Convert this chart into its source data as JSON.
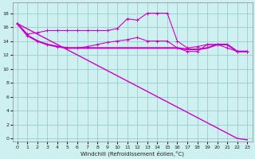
{
  "xlabel": "Windchill (Refroidissement éolien,°C)",
  "bg_color": "#cff0f0",
  "grid_color": "#99cccc",
  "line_color": "#cc00cc",
  "x_ticks": [
    0,
    1,
    2,
    3,
    4,
    5,
    6,
    7,
    8,
    9,
    10,
    11,
    12,
    13,
    14,
    15,
    16,
    17,
    18,
    19,
    20,
    21,
    22,
    23
  ],
  "y_ticks": [
    0,
    2,
    4,
    6,
    8,
    10,
    12,
    14,
    16,
    18
  ],
  "xlim": [
    -0.5,
    23.5
  ],
  "ylim": [
    -0.5,
    19.5
  ],
  "series": {
    "line_diagonal": {
      "x": [
        0,
        1,
        2,
        3,
        4,
        5,
        6,
        7,
        8,
        9,
        10,
        11,
        12,
        13,
        14,
        15,
        16,
        17,
        18,
        19,
        20,
        21,
        22,
        23
      ],
      "y": [
        16.5,
        15.75,
        15.0,
        14.25,
        13.5,
        12.75,
        12.0,
        11.25,
        10.5,
        9.75,
        9.0,
        8.25,
        7.5,
        6.75,
        6.0,
        5.25,
        4.5,
        3.75,
        3.0,
        2.25,
        1.5,
        0.75,
        0.0,
        -0.2
      ],
      "marker": null,
      "lw": 1.0
    },
    "line_flat": {
      "x": [
        0,
        1,
        2,
        3,
        4,
        5,
        6,
        7,
        8,
        9,
        10,
        11,
        12,
        13,
        14,
        15,
        16,
        17,
        18,
        19,
        20,
        21,
        22,
        23
      ],
      "y": [
        16.5,
        14.8,
        14.0,
        13.5,
        13.2,
        13.0,
        13.0,
        13.0,
        13.0,
        13.0,
        13.0,
        13.0,
        13.0,
        13.0,
        13.0,
        13.0,
        13.0,
        12.8,
        12.8,
        13.0,
        13.5,
        13.5,
        12.5,
        12.5
      ],
      "marker": null,
      "lw": 1.5
    },
    "line_markers1": {
      "x": [
        0,
        1,
        2,
        3,
        4,
        5,
        6,
        7,
        8,
        9,
        10,
        11,
        12,
        13,
        14,
        15,
        16,
        17,
        18,
        19,
        20,
        21,
        22,
        23
      ],
      "y": [
        16.5,
        14.8,
        14.0,
        13.5,
        13.2,
        13.0,
        13.0,
        13.2,
        13.5,
        13.8,
        14.0,
        14.2,
        14.5,
        14.0,
        14.0,
        14.0,
        13.0,
        12.5,
        12.5,
        13.5,
        13.5,
        13.0,
        12.5,
        12.5
      ],
      "marker": "+",
      "lw": 0.8
    },
    "line_markers2": {
      "x": [
        0,
        1,
        2,
        3,
        4,
        5,
        6,
        7,
        8,
        9,
        10,
        11,
        12,
        13,
        14,
        15,
        16,
        17,
        18,
        19,
        20,
        21,
        22,
        23
      ],
      "y": [
        16.5,
        15.0,
        15.2,
        15.5,
        15.5,
        15.5,
        15.5,
        15.5,
        15.5,
        15.5,
        15.8,
        17.2,
        17.0,
        18.0,
        18.0,
        18.0,
        14.0,
        13.0,
        13.2,
        13.5,
        13.5,
        13.5,
        12.5,
        12.5
      ],
      "marker": "+",
      "lw": 0.8
    }
  }
}
